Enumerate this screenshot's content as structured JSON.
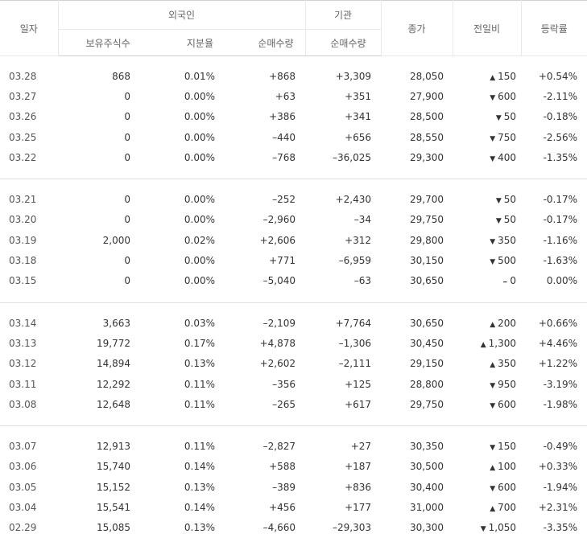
{
  "headers": {
    "date": "일자",
    "foreign": "외국인",
    "institution": "기관",
    "close": "종가",
    "change": "전일비",
    "rate": "등락률",
    "holdings": "보유주식수",
    "ratio": "지분율",
    "foreign_net": "순매수량",
    "inst_net": "순매수량"
  },
  "colors": {
    "up": "#d60000",
    "down": "#0751bd"
  },
  "groups": [
    [
      {
        "date": "03.28",
        "holdings": "868",
        "ratio": "0.01%",
        "foreign_net": "+868",
        "inst_net": "+3,309",
        "close": "28,050",
        "dir": "up",
        "change": "150",
        "rate": "+0.54%"
      },
      {
        "date": "03.27",
        "holdings": "0",
        "ratio": "0.00%",
        "foreign_net": "+63",
        "inst_net": "+351",
        "close": "27,900",
        "dir": "down",
        "change": "600",
        "rate": "-2.11%"
      },
      {
        "date": "03.26",
        "holdings": "0",
        "ratio": "0.00%",
        "foreign_net": "+386",
        "inst_net": "+341",
        "close": "28,500",
        "dir": "down",
        "change": "50",
        "rate": "-0.18%"
      },
      {
        "date": "03.25",
        "holdings": "0",
        "ratio": "0.00%",
        "foreign_net": "–440",
        "inst_net": "+656",
        "close": "28,550",
        "dir": "down",
        "change": "750",
        "rate": "-2.56%"
      },
      {
        "date": "03.22",
        "holdings": "0",
        "ratio": "0.00%",
        "foreign_net": "–768",
        "inst_net": "–36,025",
        "close": "29,300",
        "dir": "down",
        "change": "400",
        "rate": "-1.35%"
      }
    ],
    [
      {
        "date": "03.21",
        "holdings": "0",
        "ratio": "0.00%",
        "foreign_net": "–252",
        "inst_net": "+2,430",
        "close": "29,700",
        "dir": "down",
        "change": "50",
        "rate": "-0.17%"
      },
      {
        "date": "03.20",
        "holdings": "0",
        "ratio": "0.00%",
        "foreign_net": "–2,960",
        "inst_net": "–34",
        "close": "29,750",
        "dir": "down",
        "change": "50",
        "rate": "-0.17%"
      },
      {
        "date": "03.19",
        "holdings": "2,000",
        "ratio": "0.02%",
        "foreign_net": "+2,606",
        "inst_net": "+312",
        "close": "29,800",
        "dir": "down",
        "change": "350",
        "rate": "-1.16%"
      },
      {
        "date": "03.18",
        "holdings": "0",
        "ratio": "0.00%",
        "foreign_net": "+771",
        "inst_net": "–6,959",
        "close": "30,150",
        "dir": "down",
        "change": "500",
        "rate": "-1.63%"
      },
      {
        "date": "03.15",
        "holdings": "0",
        "ratio": "0.00%",
        "foreign_net": "–5,040",
        "inst_net": "–63",
        "close": "30,650",
        "dir": "flat",
        "change": "0",
        "rate": "0.00%"
      }
    ],
    [
      {
        "date": "03.14",
        "holdings": "3,663",
        "ratio": "0.03%",
        "foreign_net": "–2,109",
        "inst_net": "+7,764",
        "close": "30,650",
        "dir": "up",
        "change": "200",
        "rate": "+0.66%"
      },
      {
        "date": "03.13",
        "holdings": "19,772",
        "ratio": "0.17%",
        "foreign_net": "+4,878",
        "inst_net": "–1,306",
        "close": "30,450",
        "dir": "up",
        "change": "1,300",
        "rate": "+4.46%"
      },
      {
        "date": "03.12",
        "holdings": "14,894",
        "ratio": "0.13%",
        "foreign_net": "+2,602",
        "inst_net": "–2,111",
        "close": "29,150",
        "dir": "up",
        "change": "350",
        "rate": "+1.22%"
      },
      {
        "date": "03.11",
        "holdings": "12,292",
        "ratio": "0.11%",
        "foreign_net": "–356",
        "inst_net": "+125",
        "close": "28,800",
        "dir": "down",
        "change": "950",
        "rate": "-3.19%"
      },
      {
        "date": "03.08",
        "holdings": "12,648",
        "ratio": "0.11%",
        "foreign_net": "–265",
        "inst_net": "+617",
        "close": "29,750",
        "dir": "down",
        "change": "600",
        "rate": "-1.98%"
      }
    ],
    [
      {
        "date": "03.07",
        "holdings": "12,913",
        "ratio": "0.11%",
        "foreign_net": "–2,827",
        "inst_net": "+27",
        "close": "30,350",
        "dir": "down",
        "change": "150",
        "rate": "-0.49%"
      },
      {
        "date": "03.06",
        "holdings": "15,740",
        "ratio": "0.14%",
        "foreign_net": "+588",
        "inst_net": "+187",
        "close": "30,500",
        "dir": "up",
        "change": "100",
        "rate": "+0.33%"
      },
      {
        "date": "03.05",
        "holdings": "15,152",
        "ratio": "0.13%",
        "foreign_net": "–389",
        "inst_net": "+836",
        "close": "30,400",
        "dir": "down",
        "change": "600",
        "rate": "-1.94%"
      },
      {
        "date": "03.04",
        "holdings": "15,541",
        "ratio": "0.14%",
        "foreign_net": "+456",
        "inst_net": "+177",
        "close": "31,000",
        "dir": "up",
        "change": "700",
        "rate": "+2.31%"
      },
      {
        "date": "02.29",
        "holdings": "15,085",
        "ratio": "0.13%",
        "foreign_net": "–4,660",
        "inst_net": "–29,303",
        "close": "30,300",
        "dir": "down",
        "change": "1,050",
        "rate": "-3.35%"
      }
    ]
  ]
}
